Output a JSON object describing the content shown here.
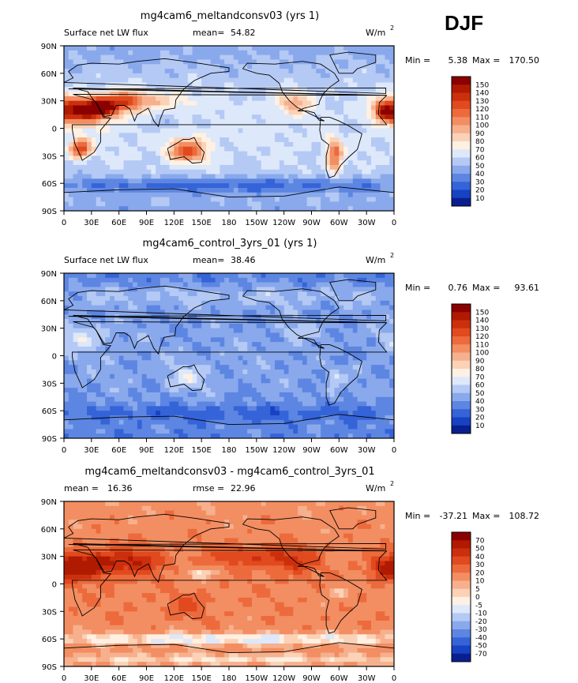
{
  "season": "DJF",
  "chart_data": [
    {
      "type": "heatmap",
      "title": "mg4cam6_meltandconsv03 (yrs 1)",
      "left_label": "Surface net LW flux",
      "mean_label": "mean=",
      "mean_value": "54.82",
      "units": "W/m",
      "units_exp": "2",
      "min_label": "Min =",
      "min_value": "5.38",
      "max_label": "Max =",
      "max_value": "170.50",
      "x_ticks": [
        "0",
        "30E",
        "60E",
        "90E",
        "120E",
        "150E",
        "180",
        "150W",
        "120W",
        "90W",
        "60W",
        "30W",
        "0"
      ],
      "y_ticks": [
        "90N",
        "60N",
        "30N",
        "0",
        "30S",
        "60S",
        "90S"
      ],
      "colorbar_levels": [
        "150",
        "140",
        "130",
        "120",
        "110",
        "100",
        "90",
        "80",
        "70",
        "60",
        "50",
        "40",
        "30",
        "20",
        "10"
      ],
      "colorbar_colors": [
        "#8b0000",
        "#b01a00",
        "#cc2f0d",
        "#e04a1e",
        "#ec6a3c",
        "#f28e62",
        "#f7b08d",
        "#fbd2b6",
        "#fef0e2",
        "#dde8fa",
        "#b4c9f4",
        "#89a9ec",
        "#5d86e2",
        "#3563d8",
        "#1742c2",
        "#0a1f8f"
      ]
    },
    {
      "type": "heatmap",
      "title": "mg4cam6_control_3yrs_01 (yrs 1)",
      "left_label": "Surface net LW flux",
      "mean_label": "mean=",
      "mean_value": "38.46",
      "units": "W/m",
      "units_exp": "2",
      "min_label": "Min =",
      "min_value": "0.76",
      "max_label": "Max =",
      "max_value": "93.61",
      "x_ticks": [
        "0",
        "30E",
        "60E",
        "90E",
        "120E",
        "150E",
        "180",
        "150W",
        "120W",
        "90W",
        "60W",
        "30W",
        "0"
      ],
      "y_ticks": [
        "90N",
        "60N",
        "30N",
        "0",
        "30S",
        "60S",
        "90S"
      ],
      "colorbar_levels": [
        "150",
        "140",
        "130",
        "120",
        "110",
        "100",
        "90",
        "80",
        "70",
        "60",
        "50",
        "40",
        "30",
        "20",
        "10"
      ],
      "colorbar_colors": [
        "#8b0000",
        "#b01a00",
        "#cc2f0d",
        "#e04a1e",
        "#ec6a3c",
        "#f28e62",
        "#f7b08d",
        "#fbd2b6",
        "#fef0e2",
        "#dde8fa",
        "#b4c9f4",
        "#89a9ec",
        "#5d86e2",
        "#3563d8",
        "#1742c2",
        "#0a1f8f"
      ]
    },
    {
      "type": "heatmap",
      "title": "mg4cam6_meltandconsv03 - mg4cam6_control_3yrs_01",
      "left_label": "mean =",
      "left_value": "16.36",
      "mean_label": "rmse =",
      "mean_value": "22.96",
      "units": "W/m",
      "units_exp": "2",
      "min_label": "Min =",
      "min_value": "-37.21",
      "max_label": "Max =",
      "max_value": "108.72",
      "x_ticks": [
        "0",
        "30E",
        "60E",
        "90E",
        "120E",
        "150E",
        "180",
        "150W",
        "120W",
        "90W",
        "60W",
        "30W",
        "0"
      ],
      "y_ticks": [
        "90N",
        "60N",
        "30N",
        "0",
        "30S",
        "60S",
        "90S"
      ],
      "colorbar_levels": [
        "70",
        "50",
        "40",
        "30",
        "20",
        "10",
        "5",
        "0",
        "-5",
        "-10",
        "-20",
        "-30",
        "-40",
        "-50",
        "-70"
      ],
      "colorbar_colors": [
        "#8b0000",
        "#b01a00",
        "#cc2f0d",
        "#e04a1e",
        "#ec6a3c",
        "#f28e62",
        "#f7b08d",
        "#fbd2b6",
        "#fef0e2",
        "#dde8fa",
        "#b4c9f4",
        "#89a9ec",
        "#5d86e2",
        "#3563d8",
        "#1742c2",
        "#0a1f8f"
      ]
    }
  ]
}
